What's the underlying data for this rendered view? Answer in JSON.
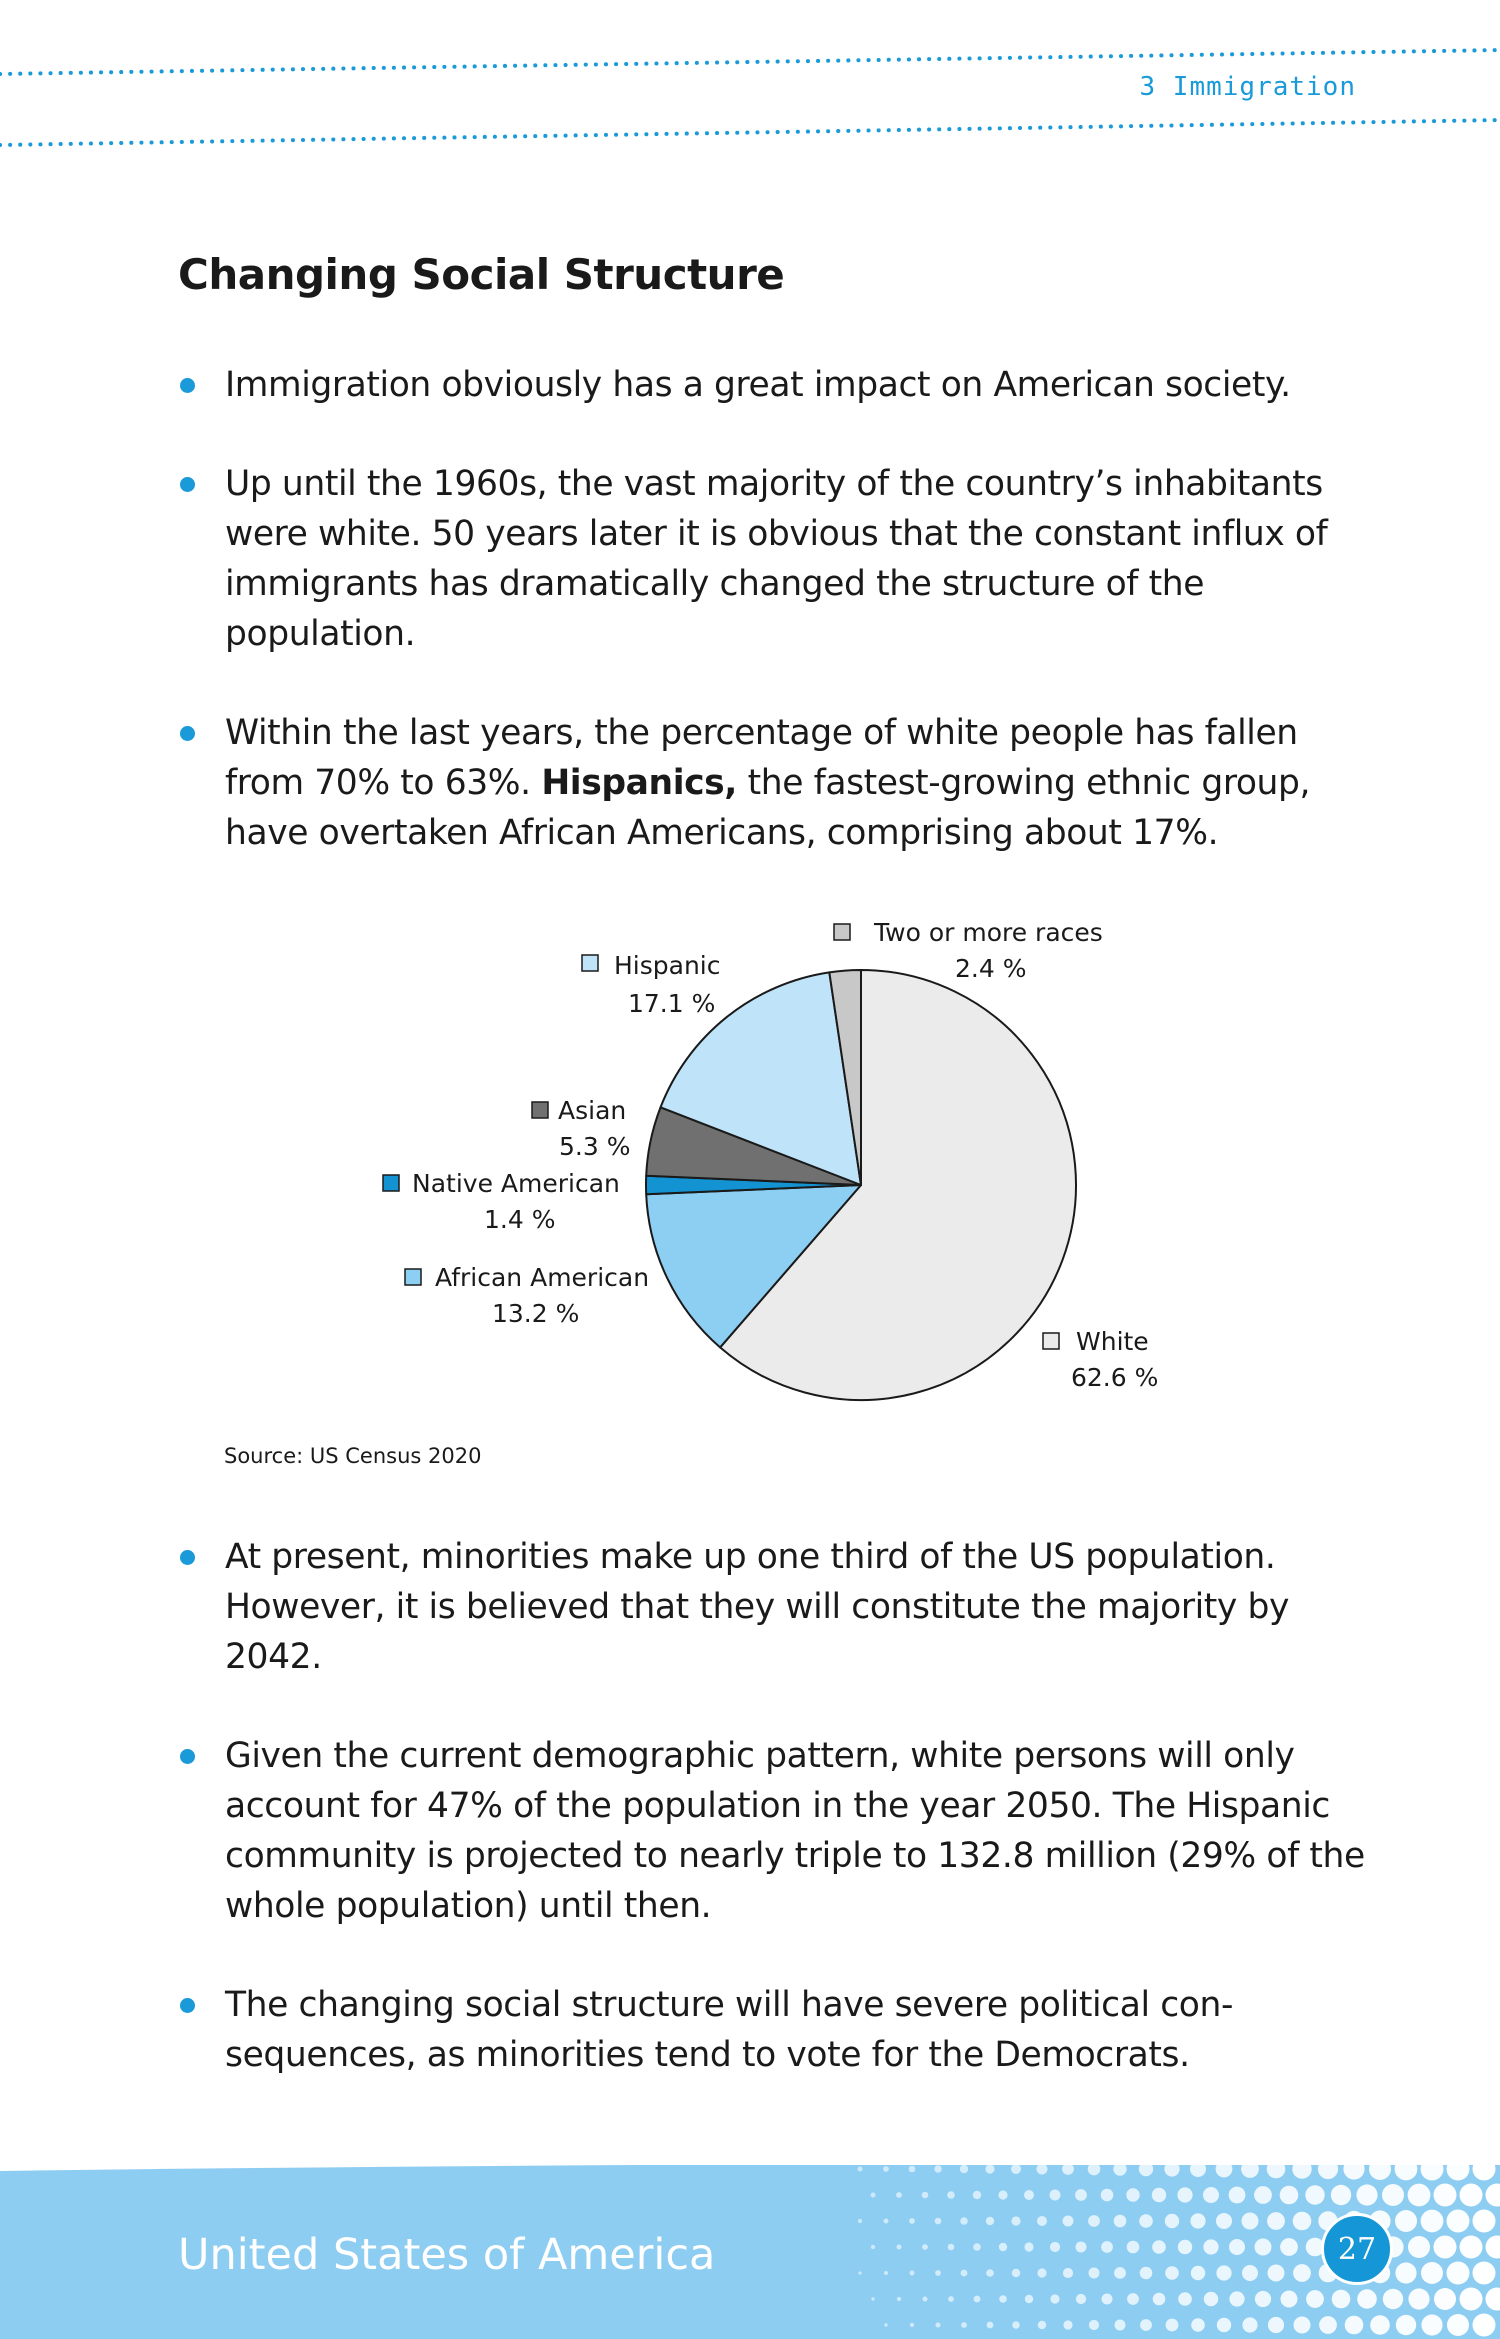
{
  "header": {
    "chapter": "3 Immigration"
  },
  "section_title": "Changing Social Structure",
  "bullets_top": [
    {
      "text": "Immigration obviously has a great impact on American society."
    },
    {
      "text": "Up until the 1960s, the vast majority of the country’s inhabitants were white. 50 years later it is obvious that the constant influx of immigrants has dramatically changed the structure of the population."
    },
    {
      "before": "Within the last years, the percentage of white people has fallen from 70% to 63%. ",
      "bold": "Hispanics,",
      "after": " the fastest-growing ethnic group, have overtaken African Americans, comprising about 17%."
    }
  ],
  "chart_data": {
    "type": "pie",
    "slices": [
      {
        "name": "White",
        "value": 62.6,
        "label": "62.6 %",
        "color": "#ebebeb"
      },
      {
        "name": "African American",
        "value": 13.2,
        "label": "13.2 %",
        "color": "#8ccff3"
      },
      {
        "name": "Native American",
        "value": 1.4,
        "label": "1.4 %",
        "color": "#1493d2"
      },
      {
        "name": "Asian",
        "value": 5.3,
        "label": "5.3 %",
        "color": "#707070"
      },
      {
        "name": "Hispanic",
        "value": 17.1,
        "label": "17.1 %",
        "color": "#bfe3f8"
      },
      {
        "name": "Two or more races",
        "value": 2.4,
        "label": "2.4 %",
        "color": "#c8c8c8"
      }
    ],
    "start": "12 o'clock",
    "direction": "clockwise"
  },
  "source": "Source: US Census 2020",
  "bullets_bottom": [
    {
      "text": "At present, minorities make up one third of the US population. However, it is believed that they will constitute the majority by 2042."
    },
    {
      "text": "Given the current demographic pattern, white persons will only account for 47% of the population in the year 2050. The Hispanic community is projected to nearly triple to 132.8 million (29% of the whole population) until then."
    },
    {
      "text": "The changing social structure will have severe political con-sequences, as minorities tend to vote for the Democrats."
    }
  ],
  "footer": {
    "title": "United States of America",
    "page_number": "27"
  },
  "colors": {
    "accent": "#1a9ad8",
    "footer_band": "#8dcdf2",
    "text": "#1a1a1a"
  }
}
